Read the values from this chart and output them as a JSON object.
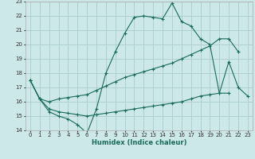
{
  "xlabel": "Humidex (Indice chaleur)",
  "xlim": [
    -0.5,
    23.5
  ],
  "ylim": [
    14,
    23
  ],
  "xticks": [
    0,
    1,
    2,
    3,
    4,
    5,
    6,
    7,
    8,
    9,
    10,
    11,
    12,
    13,
    14,
    15,
    16,
    17,
    18,
    19,
    20,
    21,
    22,
    23
  ],
  "yticks": [
    14,
    15,
    16,
    17,
    18,
    19,
    20,
    21,
    22,
    23
  ],
  "background_color": "#cce8e8",
  "grid_color": "#aacccc",
  "line_color": "#1a6b5a",
  "lines": [
    {
      "x": [
        0,
        1,
        2,
        3,
        4,
        5,
        6,
        7,
        8,
        9,
        10,
        11,
        12,
        13,
        14,
        15,
        16,
        17,
        18,
        19,
        20,
        21,
        22,
        23
      ],
      "y": [
        17.5,
        16.2,
        15.3,
        15.0,
        14.8,
        14.4,
        13.8,
        15.5,
        18.0,
        19.5,
        20.8,
        21.9,
        22.0,
        21.9,
        21.8,
        22.9,
        21.6,
        21.3,
        20.4,
        20.0,
        16.6,
        18.8,
        17.0,
        16.4
      ]
    },
    {
      "x": [
        0,
        1,
        2,
        3,
        4,
        5,
        6,
        7,
        8,
        9,
        10,
        11,
        12,
        13,
        14,
        15,
        16,
        17,
        18,
        19,
        20,
        21,
        22
      ],
      "y": [
        17.5,
        16.2,
        16.0,
        16.2,
        16.3,
        16.4,
        16.5,
        16.8,
        17.1,
        17.4,
        17.7,
        17.9,
        18.1,
        18.3,
        18.5,
        18.7,
        19.0,
        19.3,
        19.6,
        19.9,
        20.4,
        20.4,
        19.5
      ]
    },
    {
      "x": [
        0,
        1,
        2,
        3,
        4,
        5,
        6,
        7,
        8,
        9,
        10,
        11,
        12,
        13,
        14,
        15,
        16,
        17,
        18,
        19,
        20,
        21
      ],
      "y": [
        17.5,
        16.2,
        15.5,
        15.3,
        15.2,
        15.1,
        15.0,
        15.1,
        15.2,
        15.3,
        15.4,
        15.5,
        15.6,
        15.7,
        15.8,
        15.9,
        16.0,
        16.2,
        16.4,
        16.5,
        16.6,
        16.6
      ]
    }
  ]
}
